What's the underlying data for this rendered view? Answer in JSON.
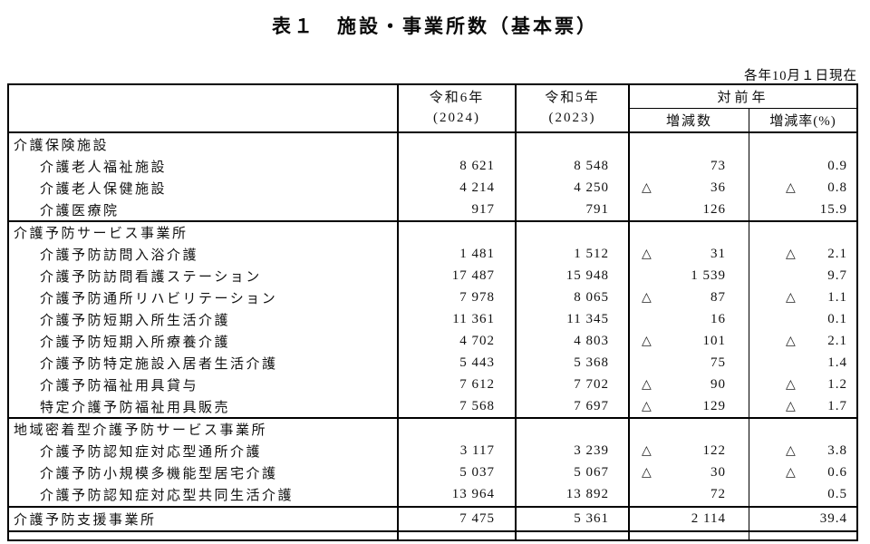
{
  "title": "表１　施設・事業所数（基本票）",
  "date_note": "各年10月１日現在",
  "table": {
    "header": {
      "y2024_l1": "令和6年",
      "y2024_l2": "(2024)",
      "y2023_l1": "令和5年",
      "y2023_l2": "(2023)",
      "yoy": "対前年",
      "diff": "増減数",
      "rate": "増減率(%)"
    },
    "rows": [
      {
        "label": "介護保険施設",
        "v1": "",
        "v2": "",
        "dt": "",
        "dv": "",
        "rt": "",
        "rv": ""
      },
      {
        "label": "介護老人福祉施設",
        "v1": "8 621",
        "v2": "8 548",
        "dt": "",
        "dv": "73",
        "rt": "",
        "rv": "0.9"
      },
      {
        "label": "介護老人保健施設",
        "v1": "4 214",
        "v2": "4 250",
        "dt": "△",
        "dv": "36",
        "rt": "△",
        "rv": "0.8"
      },
      {
        "label": "介護医療院",
        "v1": "917",
        "v2": "791",
        "dt": "",
        "dv": "126",
        "rt": "",
        "rv": "15.9"
      },
      {
        "label": "介護予防サービス事業所",
        "v1": "",
        "v2": "",
        "dt": "",
        "dv": "",
        "rt": "",
        "rv": ""
      },
      {
        "label": "介護予防訪問入浴介護",
        "v1": "1 481",
        "v2": "1 512",
        "dt": "△",
        "dv": "31",
        "rt": "△",
        "rv": "2.1"
      },
      {
        "label": "介護予防訪問看護ステーション",
        "v1": "17 487",
        "v2": "15 948",
        "dt": "",
        "dv": "1 539",
        "rt": "",
        "rv": "9.7"
      },
      {
        "label": "介護予防通所リハビリテーション",
        "v1": "7 978",
        "v2": "8 065",
        "dt": "△",
        "dv": "87",
        "rt": "△",
        "rv": "1.1"
      },
      {
        "label": "介護予防短期入所生活介護",
        "v1": "11 361",
        "v2": "11 345",
        "dt": "",
        "dv": "16",
        "rt": "",
        "rv": "0.1"
      },
      {
        "label": "介護予防短期入所療養介護",
        "v1": "4 702",
        "v2": "4 803",
        "dt": "△",
        "dv": "101",
        "rt": "△",
        "rv": "2.1"
      },
      {
        "label": "介護予防特定施設入居者生活介護",
        "v1": "5 443",
        "v2": "5 368",
        "dt": "",
        "dv": "75",
        "rt": "",
        "rv": "1.4"
      },
      {
        "label": "介護予防福祉用具貸与",
        "v1": "7 612",
        "v2": "7 702",
        "dt": "△",
        "dv": "90",
        "rt": "△",
        "rv": "1.2"
      },
      {
        "label": "特定介護予防福祉用具販売",
        "v1": "7 568",
        "v2": "7 697",
        "dt": "△",
        "dv": "129",
        "rt": "△",
        "rv": "1.7"
      },
      {
        "label": "地域密着型介護予防サービス事業所",
        "v1": "",
        "v2": "",
        "dt": "",
        "dv": "",
        "rt": "",
        "rv": ""
      },
      {
        "label": "介護予防認知症対応型通所介護",
        "v1": "3 117",
        "v2": "3 239",
        "dt": "△",
        "dv": "122",
        "rt": "△",
        "rv": "3.8"
      },
      {
        "label": "介護予防小規模多機能型居宅介護",
        "v1": "5 037",
        "v2": "5 067",
        "dt": "△",
        "dv": "30",
        "rt": "△",
        "rv": "0.6"
      },
      {
        "label": "介護予防認知症対応型共同生活介護",
        "v1": "13 964",
        "v2": "13 892",
        "dt": "",
        "dv": "72",
        "rt": "",
        "rv": "0.5"
      },
      {
        "label": "介護予防支援事業所",
        "v1": "7 475",
        "v2": "5 361",
        "dt": "",
        "dv": "2 114",
        "rt": "",
        "rv": "39.4"
      }
    ]
  }
}
